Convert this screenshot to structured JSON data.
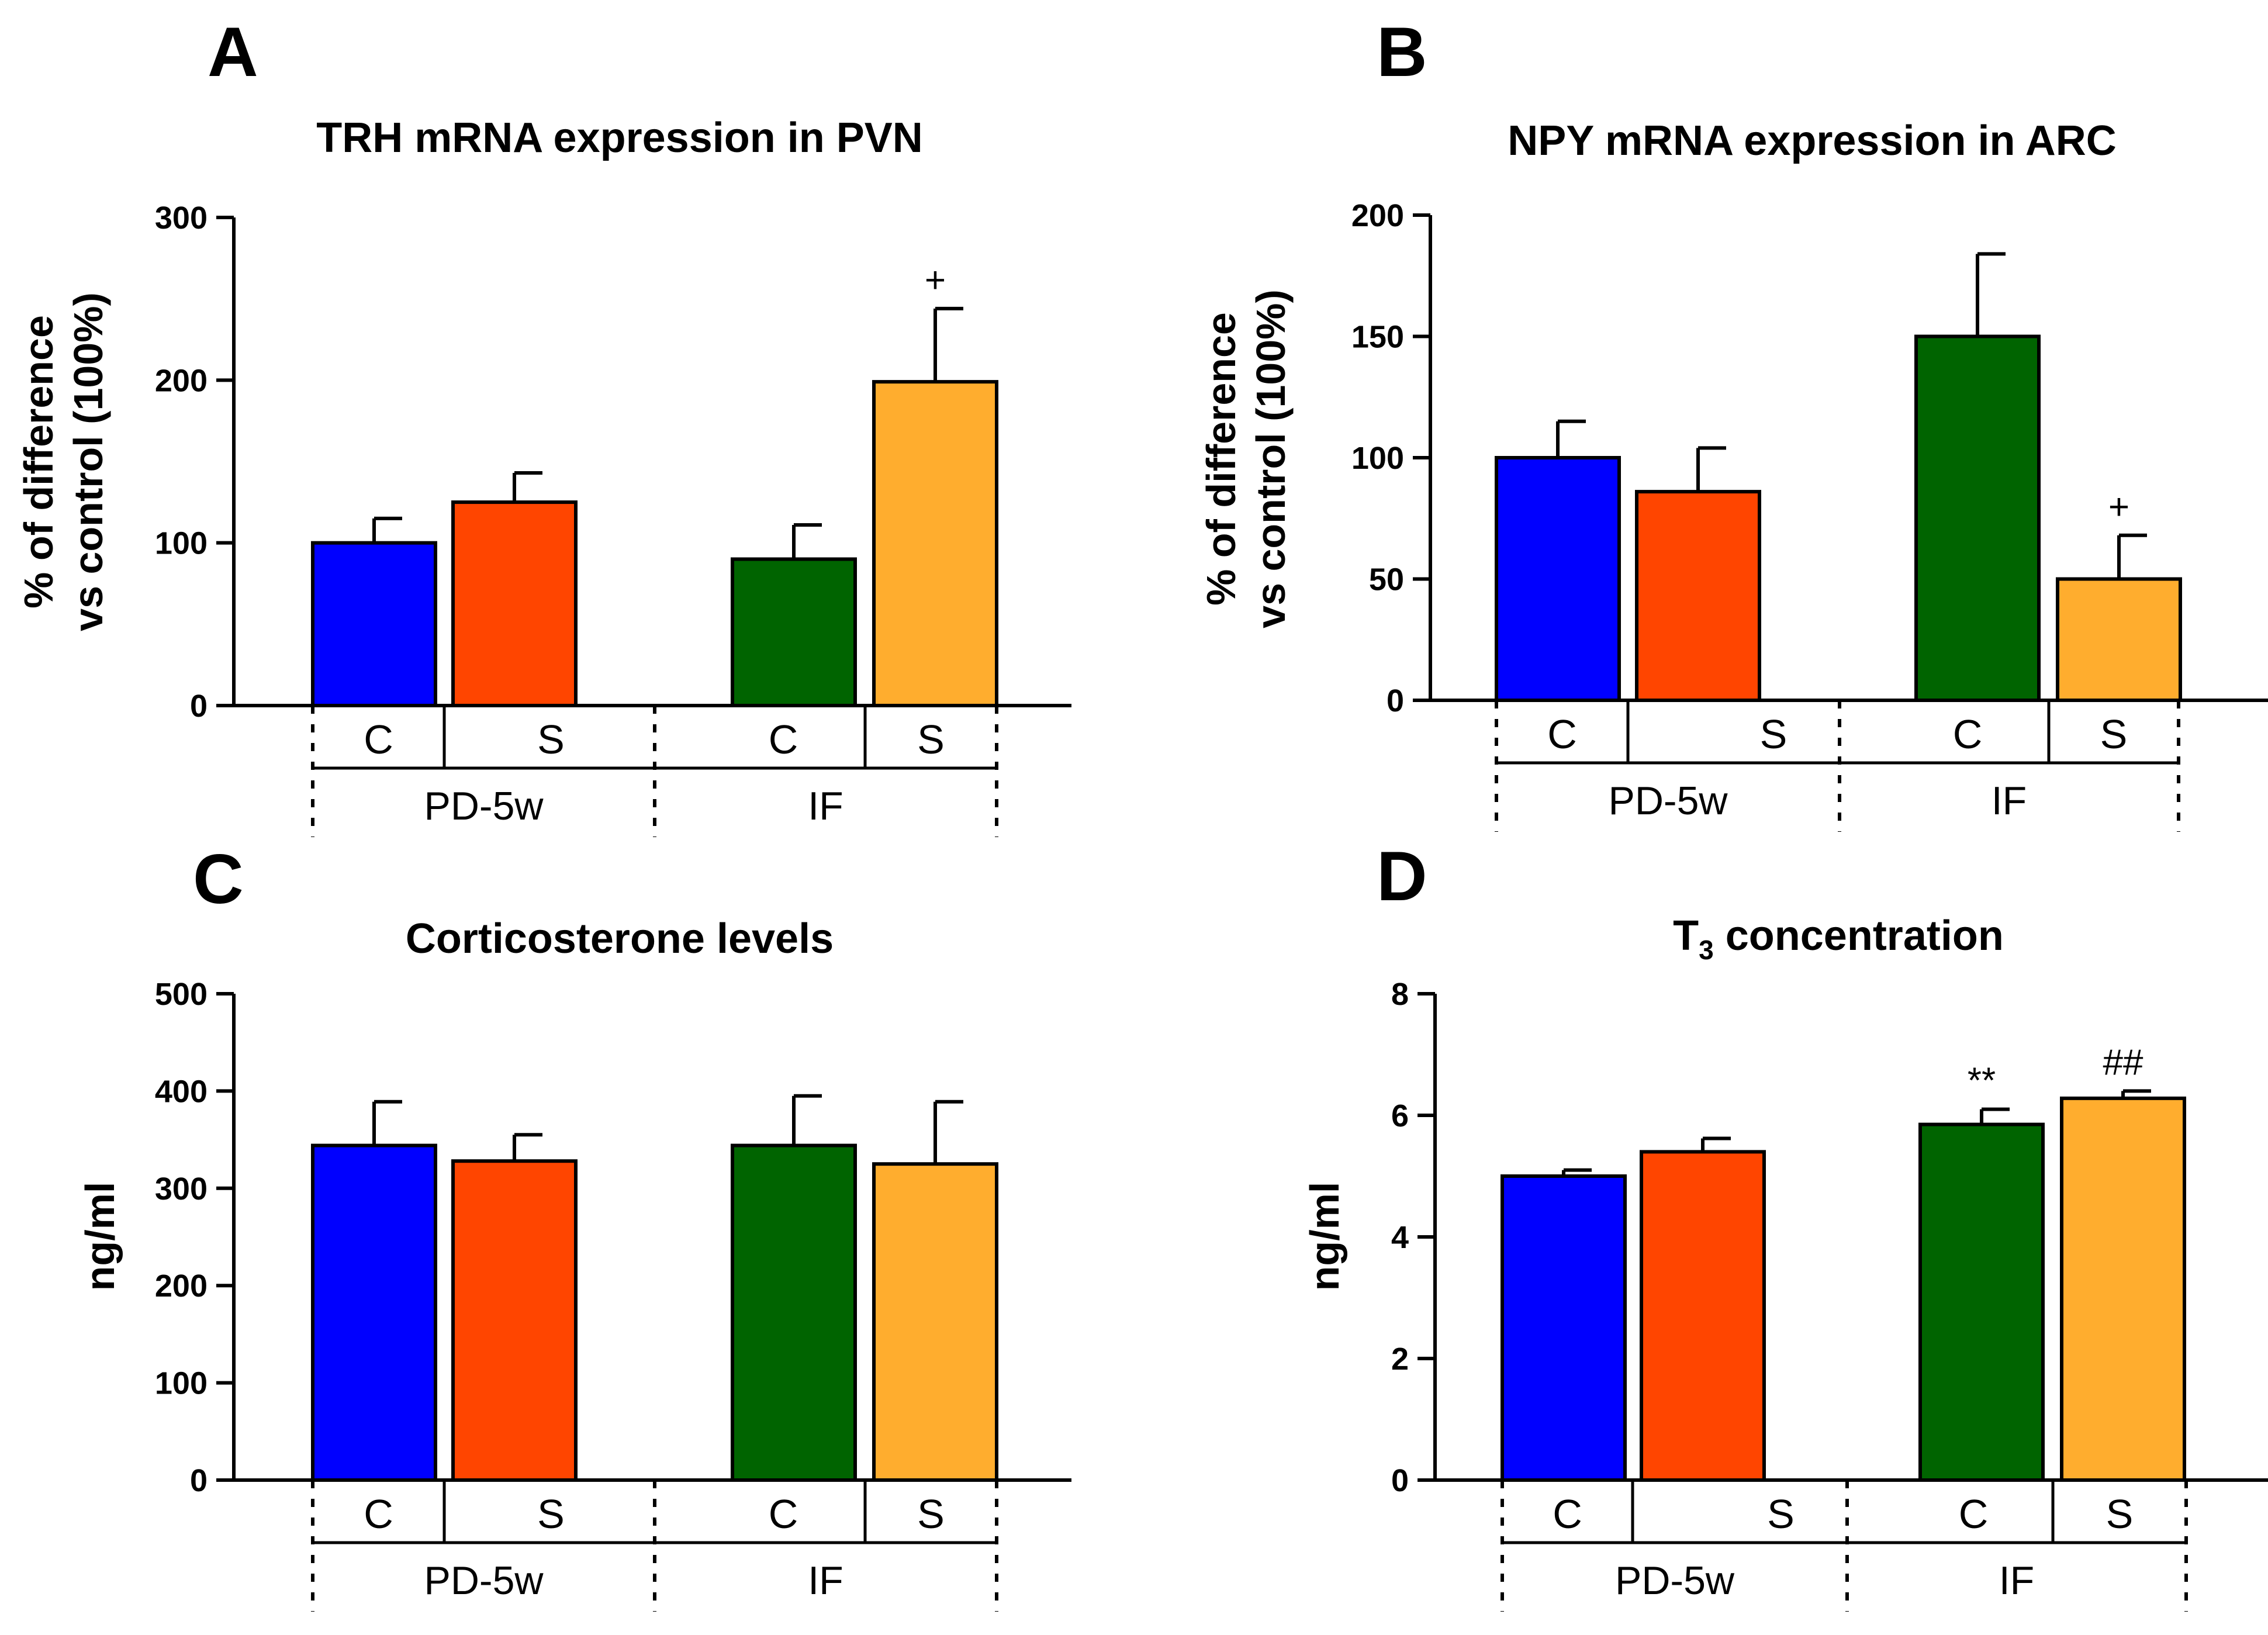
{
  "figure": {
    "panels": [
      "A",
      "B",
      "C",
      "D"
    ]
  },
  "chart_data": [
    {
      "panel": "A",
      "type": "bar",
      "title": "TRH mRNA expression in PVN",
      "ylabel_lines": [
        "% of difference",
        "vs control (100%)"
      ],
      "xlabel": "",
      "ylim": [
        0,
        300
      ],
      "yticks": [
        0,
        100,
        200,
        300
      ],
      "groups": [
        {
          "name": "PD-5w",
          "categories": [
            "C",
            "S"
          ]
        },
        {
          "name": "IF",
          "categories": [
            "C",
            "S"
          ]
        }
      ],
      "bars": [
        {
          "group": "PD-5w",
          "category": "C",
          "value": 100,
          "error": 15,
          "color": "#0000ff",
          "annotation": ""
        },
        {
          "group": "PD-5w",
          "category": "S",
          "value": 125,
          "error": 18,
          "color": "#ff4500",
          "annotation": ""
        },
        {
          "group": "IF",
          "category": "C",
          "value": 90,
          "error": 21,
          "color": "#006400",
          "annotation": ""
        },
        {
          "group": "IF",
          "category": "S",
          "value": 199,
          "error": 45,
          "color": "#ffad2e",
          "annotation": "+"
        }
      ]
    },
    {
      "panel": "B",
      "type": "bar",
      "title": "NPY mRNA expression in ARC",
      "ylabel_lines": [
        "% of difference",
        "vs control (100%)"
      ],
      "xlabel": "",
      "ylim": [
        0,
        200
      ],
      "yticks": [
        0,
        50,
        100,
        150,
        200
      ],
      "groups": [
        {
          "name": "PD-5w",
          "categories": [
            "C",
            "S"
          ]
        },
        {
          "name": "IF",
          "categories": [
            "C",
            "S"
          ]
        }
      ],
      "bars": [
        {
          "group": "PD-5w",
          "category": "C",
          "value": 100,
          "error": 15,
          "color": "#0000ff",
          "annotation": ""
        },
        {
          "group": "PD-5w",
          "category": "S",
          "value": 86,
          "error": 18,
          "color": "#ff4500",
          "annotation": ""
        },
        {
          "group": "IF",
          "category": "C",
          "value": 150,
          "error": 34,
          "color": "#006400",
          "annotation": ""
        },
        {
          "group": "IF",
          "category": "S",
          "value": 50,
          "error": 18,
          "color": "#ffad2e",
          "annotation": "+"
        }
      ]
    },
    {
      "panel": "C",
      "type": "bar",
      "title": "Corticosterone levels",
      "ylabel_lines": [
        "ng/ml"
      ],
      "xlabel": "",
      "ylim": [
        0,
        500
      ],
      "yticks": [
        0,
        100,
        200,
        300,
        400,
        500
      ],
      "groups": [
        {
          "name": "PD-5w",
          "categories": [
            "C",
            "S"
          ]
        },
        {
          "name": "IF",
          "categories": [
            "C",
            "S"
          ]
        }
      ],
      "bars": [
        {
          "group": "PD-5w",
          "category": "C",
          "value": 344,
          "error": 45,
          "color": "#0000ff",
          "annotation": ""
        },
        {
          "group": "PD-5w",
          "category": "S",
          "value": 328,
          "error": 27,
          "color": "#ff4500",
          "annotation": ""
        },
        {
          "group": "IF",
          "category": "C",
          "value": 344,
          "error": 51,
          "color": "#006400",
          "annotation": ""
        },
        {
          "group": "IF",
          "category": "S",
          "value": 325,
          "error": 64,
          "color": "#ffad2e",
          "annotation": ""
        }
      ]
    },
    {
      "panel": "D",
      "type": "bar",
      "title_main": "T",
      "title_sub": "3",
      "title_rest": " concentration",
      "ylabel_lines": [
        "ng/ml"
      ],
      "xlabel": "",
      "ylim": [
        0,
        8
      ],
      "yticks": [
        0,
        2,
        4,
        6,
        8
      ],
      "groups": [
        {
          "name": "PD-5w",
          "categories": [
            "C",
            "S"
          ]
        },
        {
          "name": "IF",
          "categories": [
            "C",
            "S"
          ]
        }
      ],
      "bars": [
        {
          "group": "PD-5w",
          "category": "C",
          "value": 5.0,
          "error": 0.1,
          "color": "#0000ff",
          "annotation": ""
        },
        {
          "group": "PD-5w",
          "category": "S",
          "value": 5.4,
          "error": 0.22,
          "color": "#ff4500",
          "annotation": ""
        },
        {
          "group": "IF",
          "category": "C",
          "value": 5.85,
          "error": 0.25,
          "color": "#006400",
          "annotation": "**"
        },
        {
          "group": "IF",
          "category": "S",
          "value": 6.28,
          "error": 0.12,
          "color": "#ffad2e",
          "annotation": "##"
        }
      ]
    }
  ]
}
